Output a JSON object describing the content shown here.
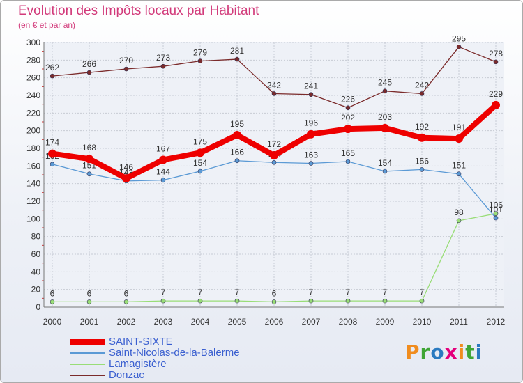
{
  "chart_data": {
    "type": "line",
    "title": "Evolution des Impôts locaux par Habitant",
    "subtitle": "(en € et par an)",
    "xlabel": "",
    "ylabel": "",
    "ylim": [
      0,
      300
    ],
    "yticks": [
      0,
      20,
      40,
      60,
      80,
      100,
      120,
      140,
      160,
      180,
      200,
      220,
      240,
      260,
      280,
      300
    ],
    "categories": [
      "2000",
      "2001",
      "2002",
      "2003",
      "2004",
      "2005",
      "2006",
      "2007",
      "2008",
      "2009",
      "2010",
      "2011",
      "2012"
    ],
    "grid": true,
    "legend_position": "bottom-left",
    "series": [
      {
        "name": "Donzac",
        "color": "#7b2b2b",
        "values": [
          262,
          266,
          270,
          273,
          279,
          281,
          242,
          241,
          226,
          245,
          242,
          295,
          278
        ],
        "labels": [
          "262",
          "266",
          "270",
          "273",
          "279",
          "281",
          "242",
          "241",
          "226",
          "245",
          "242",
          "295",
          "278"
        ]
      },
      {
        "name": "Lamagistère",
        "color": "#99dd77",
        "values": [
          6,
          6,
          6,
          7,
          7,
          7,
          6,
          7,
          7,
          7,
          7,
          98,
          106
        ],
        "labels": [
          "6",
          "6",
          "6",
          "7",
          "7",
          "7",
          "6",
          "7",
          "7",
          "7",
          "7",
          "98",
          "106"
        ]
      },
      {
        "name": "Saint-Nicolas-de-la-Balerme",
        "color": "#5b9ad5",
        "values": [
          162,
          151,
          143,
          144,
          154,
          166,
          164,
          163,
          165,
          154,
          156,
          151,
          101
        ],
        "labels": [
          "162",
          "151",
          "143",
          "144",
          "154",
          "166",
          "164",
          "163",
          "165",
          "154",
          "156",
          "151",
          "101"
        ]
      },
      {
        "name": "SAINT-SIXTE",
        "color": "#ee0000",
        "values": [
          174,
          168,
          146,
          167,
          175,
          195,
          172,
          196,
          202,
          203,
          192,
          191,
          229
        ],
        "labels": [
          "174",
          "168",
          "146",
          "167",
          "175",
          "195",
          "172",
          "196",
          "202",
          "203",
          "192",
          "191",
          "229"
        ]
      }
    ]
  },
  "legend": {
    "items": [
      {
        "label": "SAINT-SIXTE",
        "color": "#ee0000"
      },
      {
        "label": "Saint-Nicolas-de-la-Balerme",
        "color": "#5b9ad5"
      },
      {
        "label": "Lamagistère",
        "color": "#99dd77"
      },
      {
        "label": "Donzac",
        "color": "#7b2b2b"
      }
    ]
  },
  "logo": {
    "text": "Proxiti",
    "colors": [
      "#f08c1e",
      "#3fa535",
      "#2a7ac0",
      "#e4007c",
      "#f08c1e",
      "#3fa535",
      "#2a7ac0"
    ]
  }
}
